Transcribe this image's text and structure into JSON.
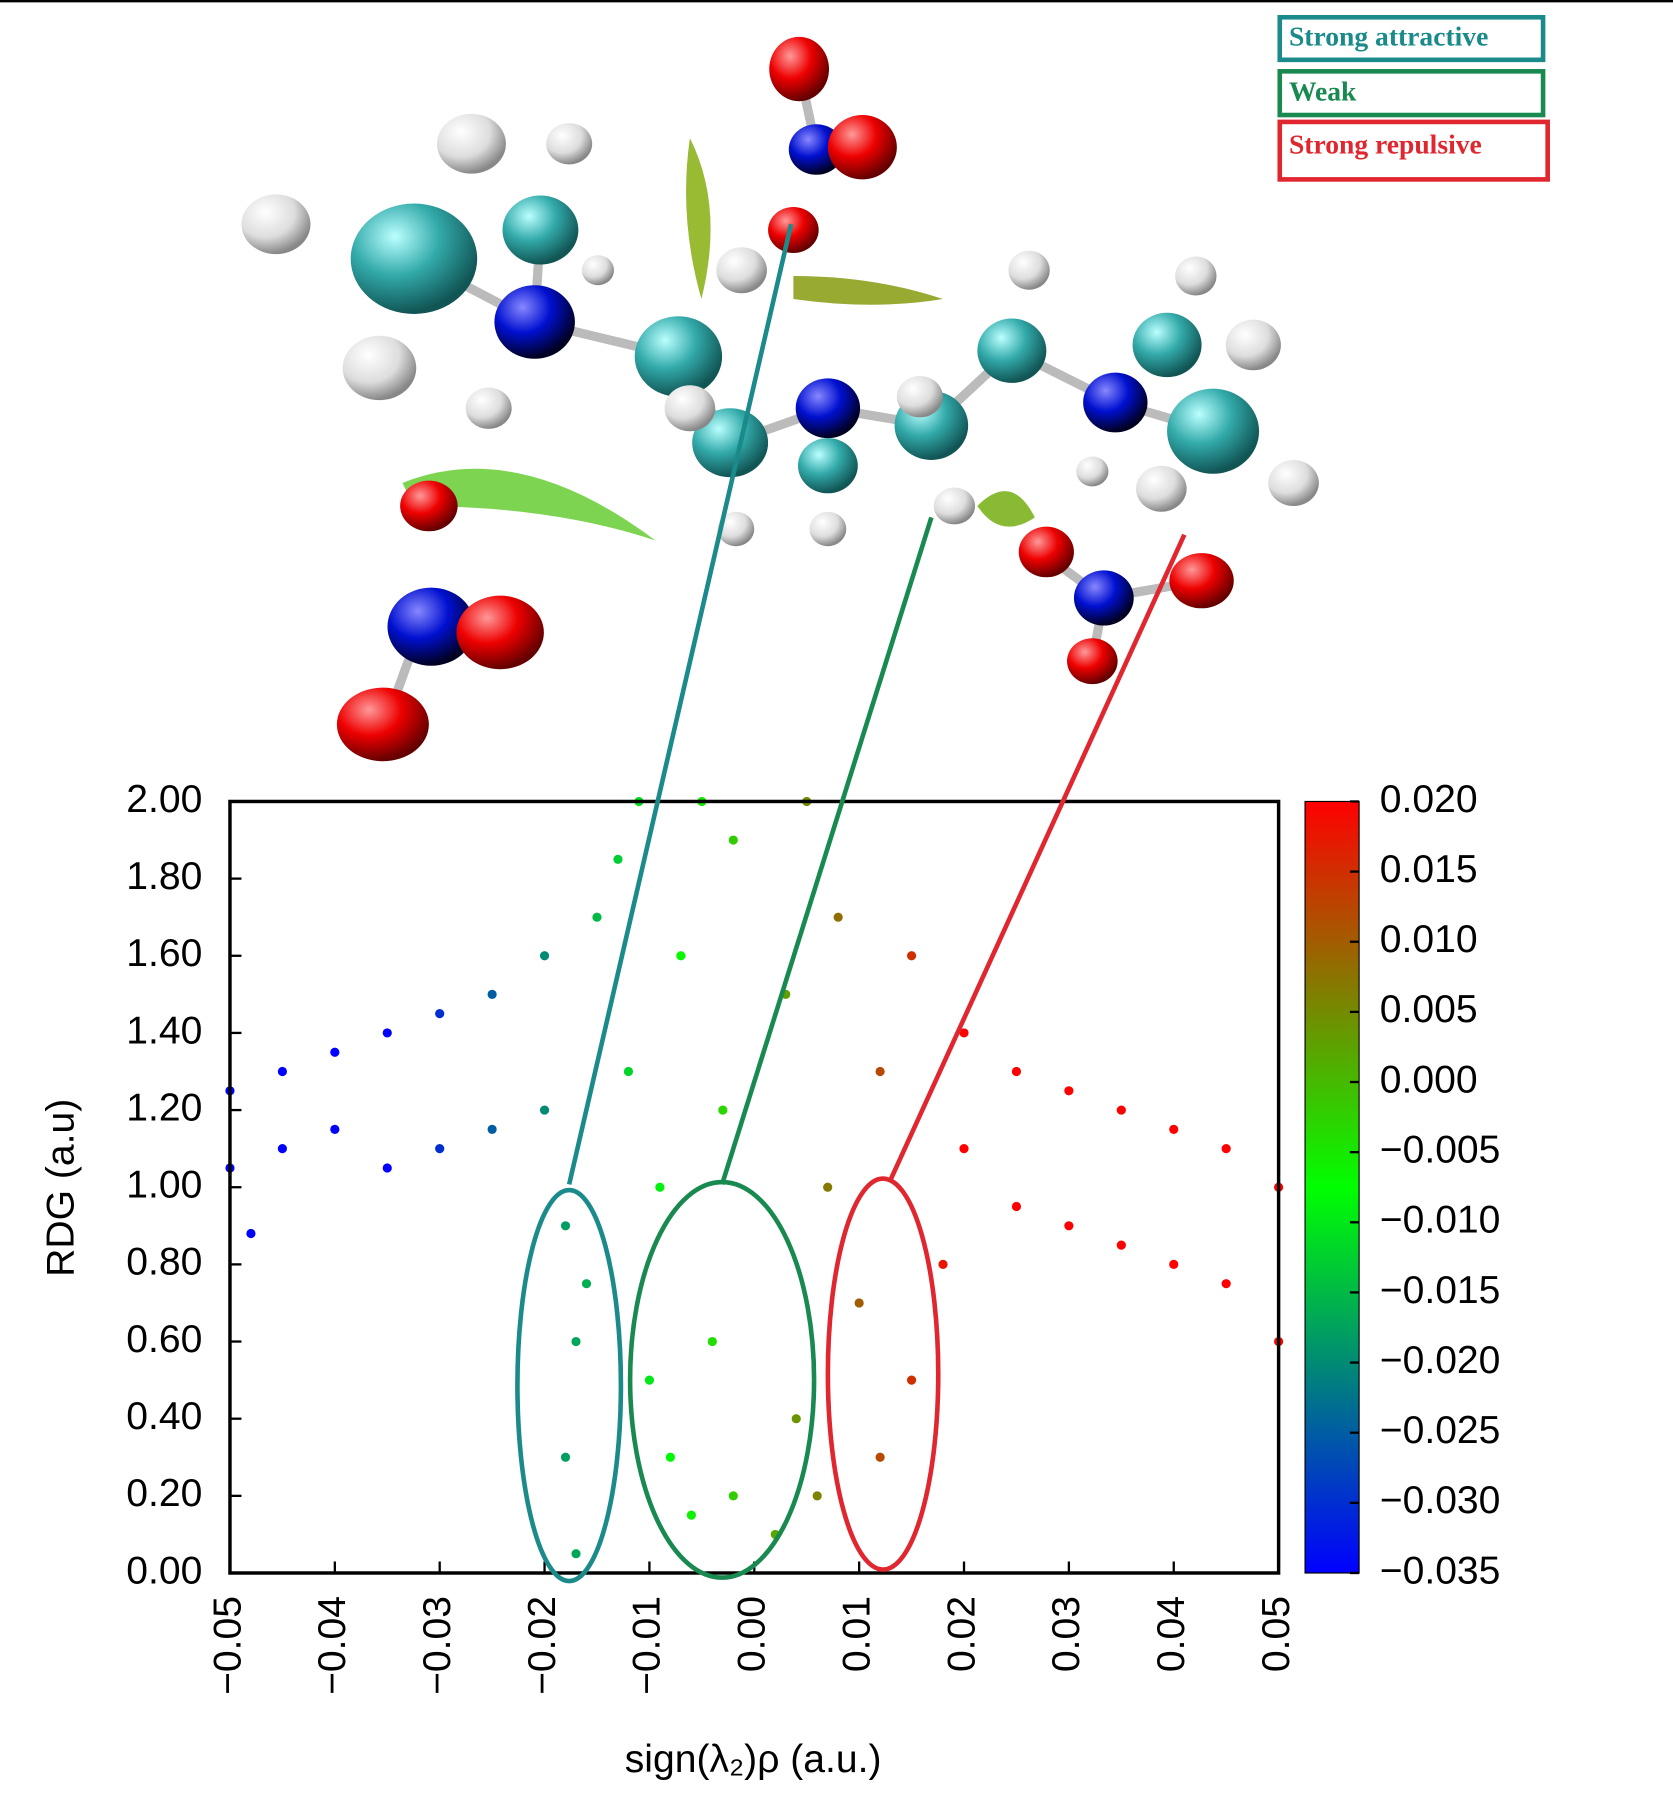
{
  "chart_data": {
    "type": "scatter",
    "xlabel": "sign(λ₂)ρ (a.u.)",
    "ylabel": "RDG (a.u)",
    "annotations": [
      "Strong attractive",
      "Weak",
      "Strong repulsive"
    ],
    "x": [
      -0.05,
      -0.05,
      -0.048,
      -0.045,
      -0.045,
      -0.04,
      -0.04,
      -0.035,
      -0.035,
      -0.03,
      -0.03,
      -0.025,
      -0.025,
      -0.02,
      -0.02,
      -0.018,
      -0.017,
      -0.018,
      -0.017,
      -0.016,
      -0.015,
      -0.013,
      -0.012,
      -0.011,
      -0.01,
      -0.009,
      -0.008,
      -0.007,
      -0.006,
      -0.005,
      -0.004,
      -0.003,
      -0.002,
      -0.002,
      0.002,
      0.003,
      0.004,
      0.005,
      0.006,
      0.007,
      0.008,
      0.01,
      0.012,
      0.012,
      0.015,
      0.015,
      0.018,
      0.02,
      0.02,
      0.025,
      0.025,
      0.03,
      0.03,
      0.035,
      0.035,
      0.04,
      0.04,
      0.045,
      0.045,
      0.05,
      0.05
    ],
    "values": [
      1.05,
      1.25,
      0.88,
      1.1,
      1.3,
      1.15,
      1.35,
      1.05,
      1.4,
      1.1,
      1.45,
      1.15,
      1.5,
      1.2,
      1.6,
      0.9,
      0.6,
      0.3,
      0.05,
      0.75,
      1.7,
      1.85,
      1.3,
      2.0,
      0.5,
      1.0,
      0.3,
      1.6,
      0.15,
      2.0,
      0.6,
      1.2,
      0.2,
      1.9,
      0.1,
      1.5,
      0.4,
      2.0,
      0.2,
      1.0,
      1.7,
      0.7,
      0.3,
      1.3,
      0.5,
      1.6,
      0.8,
      1.4,
      1.1,
      0.95,
      1.3,
      0.9,
      1.25,
      0.85,
      1.2,
      0.8,
      1.15,
      0.75,
      1.1,
      0.6,
      1.0
    ],
    "xlim": [
      -0.05,
      0.05
    ],
    "xticks": [
      {
        "value": -0.05,
        "label": "−0.05"
      },
      {
        "value": -0.04,
        "label": "−0.04"
      },
      {
        "value": -0.03,
        "label": "−0.03"
      },
      {
        "value": -0.02,
        "label": "−0.02"
      },
      {
        "value": -0.01,
        "label": "−0.01"
      },
      {
        "value": 0,
        "label": "0.00"
      },
      0.01,
      0.02,
      0.03,
      0.04,
      0.05
    ],
    "ylim": [
      0,
      2
    ],
    "yticks": [
      {
        "value": 0,
        "label": "0.00"
      },
      {
        "value": 0.2,
        "label": "0.20"
      },
      {
        "value": 0.4,
        "label": "0.40"
      },
      {
        "value": 0.6,
        "label": "0.60"
      },
      {
        "value": 0.8,
        "label": "0.80"
      },
      {
        "value": 1,
        "label": "1.00"
      },
      {
        "value": 1.2,
        "label": "1.20"
      },
      {
        "value": 1.4,
        "label": "1.40"
      },
      {
        "value": 1.6,
        "label": "1.60"
      },
      {
        "value": 1.8,
        "label": "1.80"
      },
      {
        "value": 2,
        "label": "2.00"
      }
    ],
    "colorbar": {
      "clim": [
        -0.035,
        0.02
      ],
      "colors": [
        "#0000ff",
        "#00ff00",
        "#ff0000"
      ],
      "ticks": [
        {
          "value": -0.035,
          "label": "−0.035"
        },
        {
          "value": -0.03,
          "label": "−0.030"
        },
        {
          "value": -0.025,
          "label": "−0.025"
        },
        {
          "value": -0.02,
          "label": "−0.020"
        },
        {
          "value": -0.015,
          "label": "−0.015"
        },
        {
          "value": -0.01,
          "label": "−0.010"
        },
        {
          "value": -0.005,
          "label": "−0.005"
        },
        {
          "value": 0,
          "label": "0.000"
        },
        {
          "value": 0.005,
          "label": "0.005"
        },
        {
          "value": 0.01,
          "label": "0.010"
        },
        {
          "value": 0.015,
          "label": "0.015"
        },
        {
          "value": 0.02,
          "label": "0.020"
        }
      ]
    }
  }
}
